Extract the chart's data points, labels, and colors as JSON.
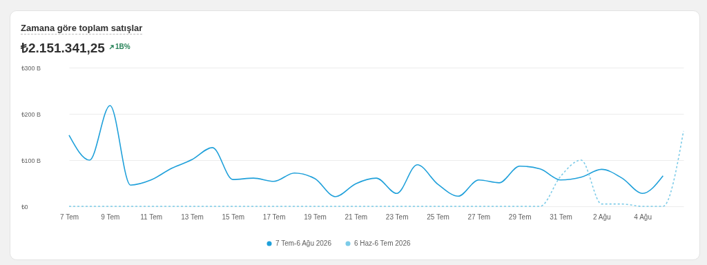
{
  "chart_data": {
    "type": "line",
    "title": "Zamana göre toplam satışlar",
    "subtitle": "₺2.151.341,25",
    "annotations": [
      "1B%"
    ],
    "categories": [
      "7 Tem",
      null,
      "9 Tem",
      null,
      "11 Tem",
      null,
      "13 Tem",
      null,
      "15 Tem",
      null,
      "17 Tem",
      null,
      "19 Tem",
      null,
      "21 Tem",
      null,
      "23 Tem",
      null,
      "25 Tem",
      null,
      "27 Tem",
      null,
      "29 Tem",
      null,
      "31 Tem",
      null,
      "2 Ağu",
      null,
      "4 Ağu",
      null,
      null
    ],
    "series": [
      {
        "name": "7 Tem-6 Ağu 2026",
        "color": "#1fa0da",
        "line_style": "solid",
        "values": [
          154,
          100,
          218,
          46,
          57,
          82,
          101,
          127,
          58,
          61,
          54,
          72,
          60,
          21,
          49,
          61,
          28,
          90,
          48,
          22,
          57,
          51,
          87,
          81,
          57,
          63,
          80,
          61,
          28,
          66,
          null
        ]
      },
      {
        "name": "6 Haz-6 Tem 2026",
        "color": "#7ccbe8",
        "line_style": "dashed",
        "values": [
          0,
          0,
          0,
          0,
          0,
          0,
          0,
          0,
          0,
          0,
          0,
          0,
          0,
          0,
          0,
          0,
          0,
          0,
          0,
          0,
          0,
          0,
          0,
          0,
          65,
          100,
          5,
          5,
          0,
          0,
          163
        ]
      }
    ],
    "ylim": [
      0,
      300
    ],
    "yticks": [
      {
        "value": 0,
        "label": "₺0"
      },
      {
        "value": 100,
        "label": "₺100 B"
      },
      {
        "value": 200,
        "label": "₺200 B"
      },
      {
        "value": 300,
        "label": "₺300 B"
      }
    ],
    "grid": "y",
    "legend": "bottom",
    "marker": "none"
  }
}
